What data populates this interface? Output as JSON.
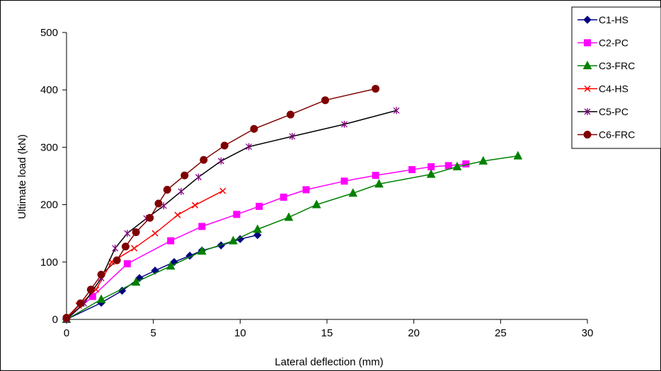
{
  "chart_data": {
    "type": "line",
    "xlabel": "Lateral deflection (mm)",
    "ylabel": "Ultimate load (kN)",
    "xlim": [
      0,
      30
    ],
    "ylim": [
      0,
      500
    ],
    "xticks": [
      "0",
      "5",
      "10",
      "15",
      "20",
      "25",
      "30"
    ],
    "yticks": [
      "0",
      "100",
      "200",
      "300",
      "400",
      "500"
    ],
    "grid": false,
    "legend_position": "top-right",
    "series": [
      {
        "name": "C1-HS",
        "color": "#000080",
        "marker": "diamond",
        "points": [
          [
            0,
            0
          ],
          [
            2,
            29
          ],
          [
            3.2,
            50
          ],
          [
            4.2,
            72
          ],
          [
            5.1,
            85
          ],
          [
            6.2,
            100
          ],
          [
            7.1,
            111
          ],
          [
            7.8,
            120
          ],
          [
            8.9,
            129
          ],
          [
            10,
            140
          ],
          [
            11,
            147
          ]
        ]
      },
      {
        "name": "C2-PC",
        "color": "#FF00FF",
        "marker": "square",
        "points": [
          [
            0,
            0
          ],
          [
            1.5,
            40
          ],
          [
            3.5,
            97
          ],
          [
            6,
            137
          ],
          [
            7.8,
            162
          ],
          [
            9.8,
            183
          ],
          [
            11.1,
            197
          ],
          [
            12.5,
            213
          ],
          [
            13.8,
            226
          ],
          [
            16,
            241
          ],
          [
            17.8,
            251
          ],
          [
            19.9,
            261
          ],
          [
            21,
            266
          ],
          [
            22,
            268
          ],
          [
            23,
            271
          ]
        ]
      },
      {
        "name": "C3-FRC",
        "color": "#008000",
        "marker": "triangle",
        "points": [
          [
            0,
            0
          ],
          [
            2,
            35
          ],
          [
            4,
            65
          ],
          [
            6,
            93
          ],
          [
            7.8,
            119
          ],
          [
            9.6,
            137
          ],
          [
            11,
            157
          ],
          [
            12.8,
            178
          ],
          [
            14.4,
            200
          ],
          [
            16.5,
            220
          ],
          [
            18,
            236
          ],
          [
            21,
            253
          ],
          [
            22.5,
            266
          ],
          [
            24,
            276
          ],
          [
            26,
            285
          ]
        ]
      },
      {
        "name": "C4-HS",
        "color": "#FF0000",
        "marker": "x",
        "points": [
          [
            0,
            0
          ],
          [
            0.7,
            24
          ],
          [
            1.7,
            52
          ],
          [
            2.6,
            100
          ],
          [
            3.9,
            124
          ],
          [
            5.1,
            150
          ],
          [
            6.4,
            182
          ],
          [
            7.4,
            199
          ],
          [
            9,
            224
          ]
        ]
      },
      {
        "name": "C5-PC",
        "color": "#000000",
        "marker": "star",
        "markerColor": "#800080",
        "points": [
          [
            0,
            0
          ],
          [
            1,
            28
          ],
          [
            2,
            72
          ],
          [
            2.8,
            124
          ],
          [
            3.5,
            150
          ],
          [
            4.6,
            176
          ],
          [
            5.6,
            198
          ],
          [
            6.6,
            223
          ],
          [
            7.6,
            248
          ],
          [
            8.9,
            276
          ],
          [
            10.5,
            301
          ],
          [
            13,
            319
          ],
          [
            16,
            340
          ],
          [
            19,
            364
          ]
        ]
      },
      {
        "name": "C6-FRC",
        "color": "#800000",
        "marker": "circle",
        "markerColor": "#800000",
        "points": [
          [
            0,
            3
          ],
          [
            0.8,
            28
          ],
          [
            1.4,
            52
          ],
          [
            2,
            78
          ],
          [
            2.9,
            103
          ],
          [
            3.4,
            127
          ],
          [
            4,
            152
          ],
          [
            4.8,
            177
          ],
          [
            5.3,
            202
          ],
          [
            5.8,
            226
          ],
          [
            6.8,
            251
          ],
          [
            7.9,
            278
          ],
          [
            9.1,
            303
          ],
          [
            10.8,
            332
          ],
          [
            12.9,
            357
          ],
          [
            14.9,
            382
          ],
          [
            17.8,
            402
          ]
        ]
      }
    ]
  }
}
